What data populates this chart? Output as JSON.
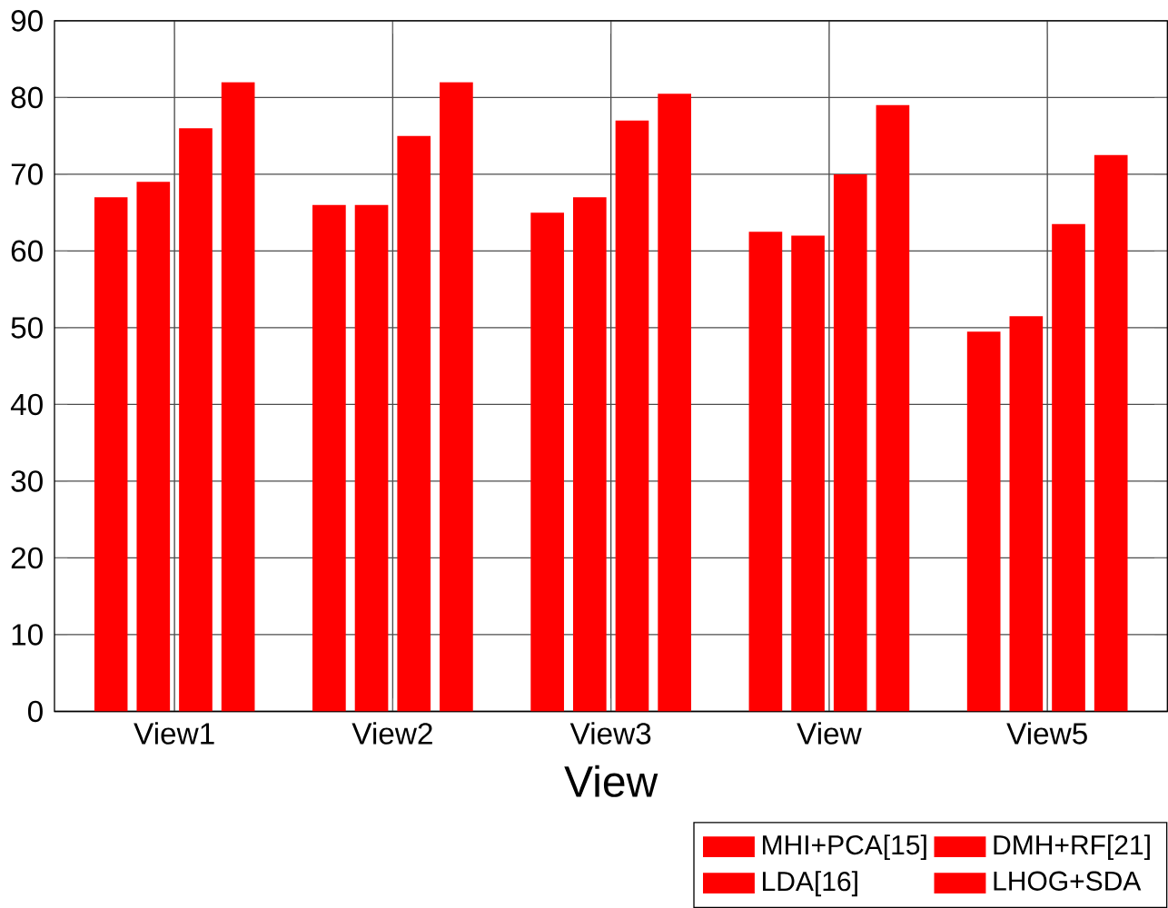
{
  "chart_data": {
    "type": "bar",
    "xlabel": "View",
    "categories": [
      "View1",
      "View2",
      "View3",
      "View",
      "View5"
    ],
    "series": [
      {
        "name": "MHI+PCA[15]",
        "color": "#ff0000",
        "values": [
          67,
          66,
          65,
          62.5,
          49.5
        ]
      },
      {
        "name": "DMH+RF[21]",
        "color": "#ff0000",
        "values": [
          69,
          66,
          67,
          62,
          51.5
        ]
      },
      {
        "name": "LDA[16]",
        "color": "#ff0000",
        "values": [
          76,
          75,
          77,
          70,
          63.5
        ]
      },
      {
        "name": "LHOG+SDA",
        "color": "#ff0000",
        "values": [
          82,
          82,
          80.5,
          79,
          72.5
        ]
      }
    ],
    "ylim": [
      0,
      90
    ],
    "yticks": [
      0,
      10,
      20,
      30,
      40,
      50,
      60,
      70,
      80,
      90
    ],
    "grid": true,
    "legend": "bottom right"
  }
}
